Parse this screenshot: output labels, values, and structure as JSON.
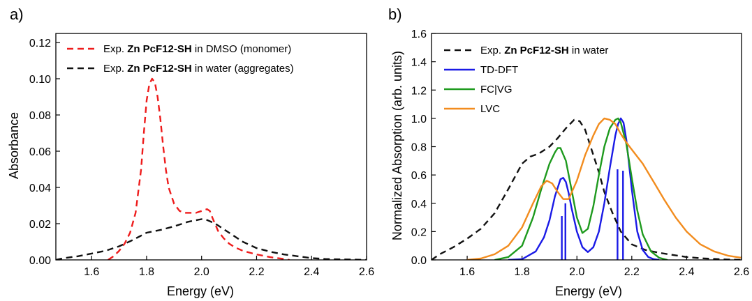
{
  "chart_data": [
    {
      "panel": "a)",
      "type": "line",
      "xlabel": "Energy (eV)",
      "ylabel": "Absorbance",
      "xlim": [
        1.47,
        2.6
      ],
      "ylim": [
        0,
        0.125
      ],
      "xticks": [
        1.6,
        1.8,
        2.0,
        2.2,
        2.4,
        2.6
      ],
      "xtick_labels": [
        "1.6",
        "1.8",
        "2.0",
        "2.2",
        "2.4",
        "2.6"
      ],
      "yticks": [
        0,
        0.02,
        0.04,
        0.06,
        0.08,
        0.1,
        0.12
      ],
      "ytick_labels": [
        "0.00",
        "0.02",
        "0.04",
        "0.06",
        "0.08",
        "0.10",
        "0.12"
      ],
      "legend_position": "top-right",
      "series": [
        {
          "legend_pre": "Exp. ",
          "legend_bold": "Zn PcF12-SH",
          "legend_post": " in DMSO (monomer)",
          "color": "#ee1c1c",
          "style": "dashed",
          "x": [
            1.66,
            1.68,
            1.7,
            1.72,
            1.74,
            1.76,
            1.78,
            1.79,
            1.8,
            1.81,
            1.82,
            1.83,
            1.84,
            1.85,
            1.86,
            1.87,
            1.88,
            1.9,
            1.92,
            1.94,
            1.96,
            1.98,
            2.0,
            2.02,
            2.03,
            2.04,
            2.06,
            2.08,
            2.1,
            2.12,
            2.15,
            2.2,
            2.25,
            2.3,
            2.32
          ],
          "y": [
            0.0,
            0.002,
            0.005,
            0.009,
            0.015,
            0.026,
            0.05,
            0.07,
            0.088,
            0.097,
            0.1,
            0.098,
            0.09,
            0.078,
            0.063,
            0.05,
            0.04,
            0.031,
            0.027,
            0.026,
            0.026,
            0.026,
            0.027,
            0.028,
            0.027,
            0.023,
            0.016,
            0.012,
            0.009,
            0.007,
            0.005,
            0.003,
            0.0015,
            0.0005,
            0.0
          ]
        },
        {
          "legend_pre": "Exp. ",
          "legend_bold": "Zn PcF12-SH",
          "legend_post": " in water (aggregates)",
          "color": "#111111",
          "style": "dashed",
          "x": [
            1.47,
            1.5,
            1.55,
            1.6,
            1.65,
            1.7,
            1.75,
            1.8,
            1.85,
            1.9,
            1.95,
            2.0,
            2.02,
            2.05,
            2.1,
            2.15,
            2.2,
            2.25,
            2.3,
            2.35,
            2.4,
            2.45,
            2.5,
            2.55,
            2.6
          ],
          "y": [
            0.0,
            0.001,
            0.002,
            0.0035,
            0.005,
            0.0075,
            0.011,
            0.015,
            0.0165,
            0.0185,
            0.021,
            0.0225,
            0.022,
            0.02,
            0.015,
            0.01,
            0.0065,
            0.0045,
            0.003,
            0.002,
            0.001,
            0.0005,
            0.0003,
            0.0002,
            0.0
          ]
        }
      ]
    },
    {
      "panel": "b)",
      "type": "line",
      "xlabel": "Energy (eV)",
      "ylabel": "Normalized Absorption (arb. units)",
      "xlim": [
        1.47,
        2.6
      ],
      "ylim": [
        0,
        1.6
      ],
      "xticks": [
        1.6,
        1.8,
        2.0,
        2.2,
        2.4,
        2.6
      ],
      "xtick_labels": [
        "1.6",
        "1.8",
        "2.0",
        "2.2",
        "2.4",
        "2.6"
      ],
      "yticks": [
        0,
        0.2,
        0.4,
        0.6,
        0.8,
        1.0,
        1.2,
        1.4,
        1.6
      ],
      "ytick_labels": [
        "0.0",
        "0.2",
        "0.4",
        "0.6",
        "0.8",
        "1.0",
        "1.2",
        "1.4",
        "1.6"
      ],
      "legend_position": "top-left",
      "series": [
        {
          "legend_pre": "Exp. ",
          "legend_bold": "Zn PcF12-SH",
          "legend_post": " in water",
          "color": "#111111",
          "style": "dashed",
          "x": [
            1.47,
            1.5,
            1.55,
            1.6,
            1.65,
            1.7,
            1.75,
            1.8,
            1.83,
            1.86,
            1.9,
            1.93,
            1.96,
            1.99,
            2.01,
            2.03,
            2.05,
            2.08,
            2.1,
            2.13,
            2.16,
            2.2,
            2.25,
            2.3,
            2.35,
            2.4,
            2.45,
            2.5,
            2.55,
            2.6
          ],
          "y": [
            0.0,
            0.04,
            0.09,
            0.15,
            0.22,
            0.33,
            0.5,
            0.68,
            0.73,
            0.75,
            0.8,
            0.86,
            0.93,
            0.99,
            0.98,
            0.92,
            0.8,
            0.62,
            0.48,
            0.33,
            0.2,
            0.11,
            0.07,
            0.05,
            0.035,
            0.02,
            0.012,
            0.007,
            0.003,
            0.0
          ]
        },
        {
          "legend_label": "TD-DFT",
          "color": "#1a1ae6",
          "style": "solid",
          "x": [
            1.75,
            1.8,
            1.85,
            1.88,
            1.9,
            1.92,
            1.94,
            1.95,
            1.96,
            1.97,
            1.98,
            2.0,
            2.02,
            2.04,
            2.06,
            2.08,
            2.1,
            2.12,
            2.14,
            2.15,
            2.16,
            2.17,
            2.18,
            2.2,
            2.22,
            2.24,
            2.26,
            2.28,
            2.3
          ],
          "y": [
            0.0,
            0.005,
            0.06,
            0.16,
            0.28,
            0.45,
            0.57,
            0.58,
            0.55,
            0.47,
            0.37,
            0.2,
            0.09,
            0.055,
            0.09,
            0.2,
            0.4,
            0.65,
            0.88,
            0.96,
            1.0,
            0.97,
            0.85,
            0.5,
            0.2,
            0.07,
            0.02,
            0.005,
            0.0
          ]
        },
        {
          "legend_label": "FC|VG",
          "color": "#1e9a1e",
          "style": "solid",
          "x": [
            1.7,
            1.75,
            1.8,
            1.84,
            1.87,
            1.9,
            1.92,
            1.93,
            1.94,
            1.96,
            1.98,
            2.0,
            2.02,
            2.04,
            2.06,
            2.08,
            2.1,
            2.12,
            2.14,
            2.15,
            2.16,
            2.18,
            2.2,
            2.22,
            2.24,
            2.27,
            2.3,
            2.33
          ],
          "y": [
            0.0,
            0.02,
            0.1,
            0.3,
            0.5,
            0.68,
            0.76,
            0.79,
            0.79,
            0.7,
            0.5,
            0.3,
            0.19,
            0.22,
            0.38,
            0.6,
            0.8,
            0.93,
            0.99,
            1.0,
            0.97,
            0.82,
            0.58,
            0.35,
            0.18,
            0.06,
            0.015,
            0.0
          ]
        },
        {
          "legend_label": "LVC",
          "color": "#f28c1e",
          "style": "solid",
          "x": [
            1.6,
            1.65,
            1.7,
            1.75,
            1.8,
            1.84,
            1.87,
            1.89,
            1.91,
            1.93,
            1.95,
            1.97,
            2.0,
            2.03,
            2.06,
            2.08,
            2.1,
            2.12,
            2.14,
            2.16,
            2.18,
            2.2,
            2.24,
            2.28,
            2.32,
            2.36,
            2.4,
            2.45,
            2.5,
            2.55,
            2.6
          ],
          "y": [
            0.0,
            0.01,
            0.04,
            0.1,
            0.23,
            0.4,
            0.52,
            0.56,
            0.54,
            0.48,
            0.43,
            0.43,
            0.56,
            0.74,
            0.88,
            0.96,
            1.0,
            0.99,
            0.96,
            0.89,
            0.83,
            0.78,
            0.68,
            0.55,
            0.42,
            0.3,
            0.2,
            0.11,
            0.06,
            0.03,
            0.015
          ]
        }
      ],
      "sticks": {
        "color": "#1a1ae6",
        "x": [
          1.945,
          1.958,
          2.148,
          2.168
        ],
        "y": [
          0.31,
          0.4,
          0.64,
          0.63
        ]
      }
    }
  ]
}
